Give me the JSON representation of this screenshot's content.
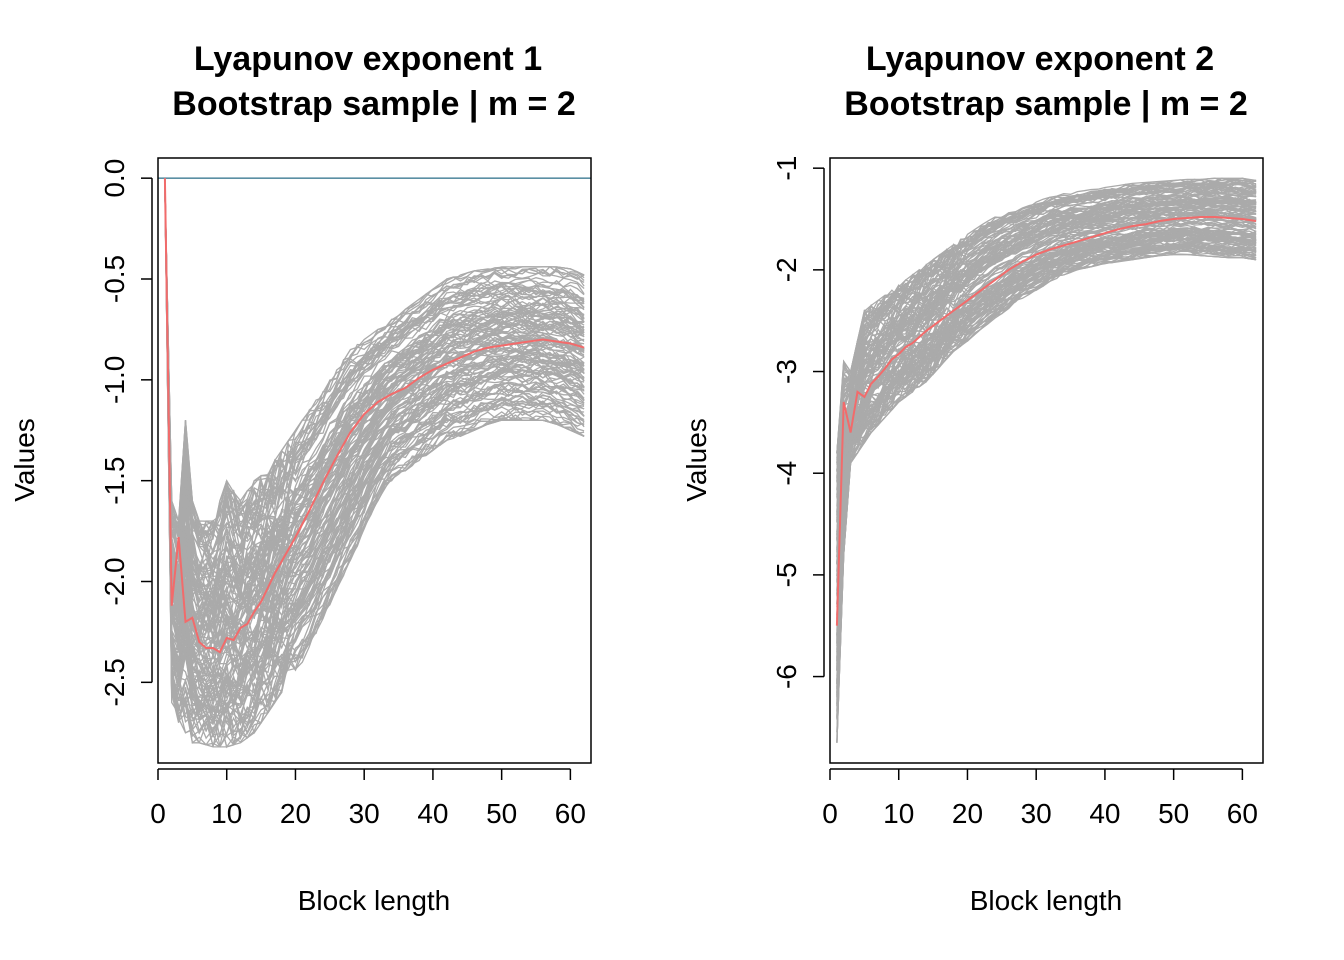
{
  "chart_data": [
    {
      "type": "line",
      "title": "Lyapunov exponent 1",
      "subtitle": "Bootstrap sample | m = 2",
      "xlabel": "Block length",
      "ylabel": "Values",
      "xlim": [
        0,
        63
      ],
      "ylim": [
        -2.9,
        0.1
      ],
      "x_ticks": [
        0,
        10,
        20,
        30,
        40,
        50,
        60
      ],
      "y_ticks": [
        0.0,
        -0.5,
        -1.0,
        -1.5,
        -2.0,
        -2.5
      ],
      "y_tick_labels": [
        "0.0",
        "-0.5",
        "-1.0",
        "-1.5",
        "-2.0",
        "-2.5"
      ],
      "grid": false,
      "reference_line": {
        "y": 0.0,
        "color": "#5b8fa3"
      },
      "colors": {
        "bootstrap": "#aaaaaa",
        "estimate": "#f26b6b"
      },
      "bootstrap_band": {
        "x": [
          1,
          2,
          3,
          4,
          5,
          6,
          8,
          10,
          12,
          14,
          16,
          18,
          20,
          22,
          24,
          26,
          28,
          30,
          32,
          34,
          36,
          38,
          40,
          42,
          44,
          46,
          48,
          50,
          52,
          54,
          56,
          58,
          60,
          62
        ],
        "upper": [
          0.0,
          -1.6,
          -1.7,
          -1.2,
          -1.6,
          -1.7,
          -1.7,
          -1.5,
          -1.6,
          -1.5,
          -1.45,
          -1.35,
          -1.25,
          -1.15,
          -1.05,
          -0.95,
          -0.85,
          -0.8,
          -0.75,
          -0.7,
          -0.65,
          -0.6,
          -0.55,
          -0.5,
          -0.48,
          -0.46,
          -0.45,
          -0.44,
          -0.44,
          -0.44,
          -0.44,
          -0.44,
          -0.45,
          -0.48
        ],
        "lower": [
          0.0,
          -2.6,
          -2.7,
          -2.75,
          -2.8,
          -2.8,
          -2.82,
          -2.82,
          -2.8,
          -2.75,
          -2.65,
          -2.55,
          -2.45,
          -2.35,
          -2.2,
          -2.05,
          -1.9,
          -1.75,
          -1.6,
          -1.5,
          -1.45,
          -1.4,
          -1.35,
          -1.3,
          -1.28,
          -1.25,
          -1.22,
          -1.2,
          -1.2,
          -1.2,
          -1.2,
          -1.22,
          -1.25,
          -1.28
        ]
      },
      "series": [
        {
          "x": [
            1,
            2,
            3,
            4,
            5,
            6,
            7,
            8,
            9,
            10,
            11,
            12,
            13,
            14,
            15,
            16,
            17,
            18,
            19,
            20,
            22,
            24,
            26,
            28,
            30,
            32,
            34,
            36,
            38,
            40,
            42,
            44,
            46,
            48,
            50,
            52,
            54,
            56,
            58,
            60,
            62
          ],
          "values": [
            0.0,
            -2.12,
            -1.78,
            -2.2,
            -2.18,
            -2.3,
            -2.33,
            -2.33,
            -2.35,
            -2.28,
            -2.29,
            -2.23,
            -2.21,
            -2.15,
            -2.1,
            -2.03,
            -1.96,
            -1.9,
            -1.84,
            -1.78,
            -1.65,
            -1.51,
            -1.38,
            -1.26,
            -1.17,
            -1.11,
            -1.07,
            -1.04,
            -0.99,
            -0.95,
            -0.92,
            -0.89,
            -0.86,
            -0.84,
            -0.83,
            -0.82,
            -0.81,
            -0.8,
            -0.81,
            -0.82,
            -0.84
          ]
        }
      ]
    },
    {
      "type": "line",
      "title": "Lyapunov exponent 2",
      "subtitle": "Bootstrap sample | m = 2",
      "xlabel": "Block length",
      "ylabel": "Values",
      "xlim": [
        0,
        63
      ],
      "ylim": [
        -6.85,
        -0.9
      ],
      "x_ticks": [
        0,
        10,
        20,
        30,
        40,
        50,
        60
      ],
      "y_ticks": [
        -1,
        -2,
        -3,
        -4,
        -5,
        -6
      ],
      "y_tick_labels": [
        "-1",
        "-2",
        "-3",
        "-4",
        "-5",
        "-6"
      ],
      "grid": false,
      "colors": {
        "bootstrap": "#aaaaaa",
        "estimate": "#f26b6b"
      },
      "bootstrap_band": {
        "x": [
          1,
          2,
          3,
          4,
          5,
          6,
          8,
          10,
          12,
          14,
          16,
          18,
          20,
          22,
          24,
          26,
          28,
          30,
          32,
          34,
          36,
          38,
          40,
          42,
          44,
          46,
          48,
          50,
          52,
          54,
          56,
          58,
          60,
          62
        ],
        "upper": [
          -3.8,
          -2.9,
          -3.0,
          -2.7,
          -2.4,
          -2.35,
          -2.25,
          -2.15,
          -2.05,
          -1.95,
          -1.85,
          -1.75,
          -1.65,
          -1.55,
          -1.48,
          -1.42,
          -1.38,
          -1.33,
          -1.28,
          -1.25,
          -1.23,
          -1.21,
          -1.19,
          -1.17,
          -1.15,
          -1.14,
          -1.13,
          -1.12,
          -1.11,
          -1.11,
          -1.1,
          -1.1,
          -1.1,
          -1.12
        ],
        "lower": [
          -6.65,
          -4.8,
          -3.9,
          -3.8,
          -3.7,
          -3.6,
          -3.45,
          -3.3,
          -3.2,
          -3.1,
          -2.95,
          -2.8,
          -2.7,
          -2.58,
          -2.48,
          -2.38,
          -2.28,
          -2.2,
          -2.12,
          -2.05,
          -2.0,
          -1.97,
          -1.94,
          -1.92,
          -1.9,
          -1.88,
          -1.86,
          -1.85,
          -1.85,
          -1.86,
          -1.87,
          -1.88,
          -1.88,
          -1.9
        ]
      },
      "series": [
        {
          "x": [
            1,
            2,
            3,
            4,
            5,
            6,
            7,
            8,
            9,
            10,
            11,
            12,
            14,
            16,
            18,
            20,
            22,
            24,
            26,
            28,
            30,
            32,
            34,
            36,
            38,
            40,
            42,
            44,
            46,
            48,
            50,
            52,
            54,
            56,
            58,
            60,
            62
          ],
          "values": [
            -5.5,
            -3.3,
            -3.6,
            -3.2,
            -3.25,
            -3.12,
            -3.05,
            -2.97,
            -2.88,
            -2.83,
            -2.76,
            -2.72,
            -2.6,
            -2.5,
            -2.4,
            -2.3,
            -2.2,
            -2.1,
            -2.0,
            -1.92,
            -1.85,
            -1.8,
            -1.76,
            -1.72,
            -1.68,
            -1.64,
            -1.6,
            -1.57,
            -1.55,
            -1.52,
            -1.5,
            -1.49,
            -1.48,
            -1.48,
            -1.49,
            -1.5,
            -1.52
          ]
        }
      ]
    }
  ]
}
